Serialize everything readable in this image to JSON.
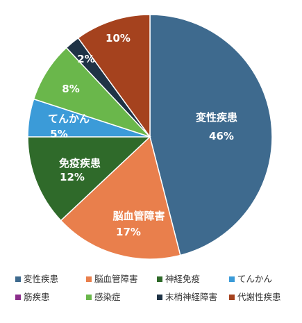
{
  "chart_data": {
    "type": "pie",
    "start_angle_deg": 0,
    "direction": "clockwise",
    "slices": [
      {
        "name": "変性疾患",
        "value": 46,
        "label": "46%",
        "color": "#3E6A8E",
        "text_lines": [
          "変性疾患",
          "46%"
        ]
      },
      {
        "name": "脳血管障害",
        "value": 17,
        "label": "17%",
        "color": "#E97F4C",
        "text_lines": [
          "脳血管障害",
          "17%"
        ]
      },
      {
        "name": "神経免疫",
        "value": 12,
        "label": "12%",
        "color": "#2F6A2A",
        "text_lines": [
          "免疫疾患",
          "12%"
        ]
      },
      {
        "name": "てんかん",
        "value": 5,
        "label": "5%",
        "color": "#3B9BD8",
        "text_lines": [
          "てんかん",
          "5%"
        ]
      },
      {
        "name": "筋疾患",
        "value": 0,
        "label": "",
        "color": "#8B2E8B",
        "text_lines": []
      },
      {
        "name": "感染症",
        "value": 8,
        "label": "8%",
        "color": "#6AB74B",
        "text_lines": [
          "8%"
        ]
      },
      {
        "name": "末梢神経障害",
        "value": 2,
        "label": "2%",
        "color": "#1F3346",
        "text_lines": [
          "2%"
        ]
      },
      {
        "name": "代謝性疾患",
        "value": 10,
        "label": "10%",
        "color": "#A5421E",
        "text_lines": [
          "10%"
        ]
      }
    ],
    "legend": {
      "position": "bottom",
      "entries": [
        "変性疾患",
        "脳血管障害",
        "神経免疫",
        "てんかん",
        "筋疾患",
        "感染症",
        "末梢神経障害",
        "代謝性疾患"
      ]
    }
  }
}
